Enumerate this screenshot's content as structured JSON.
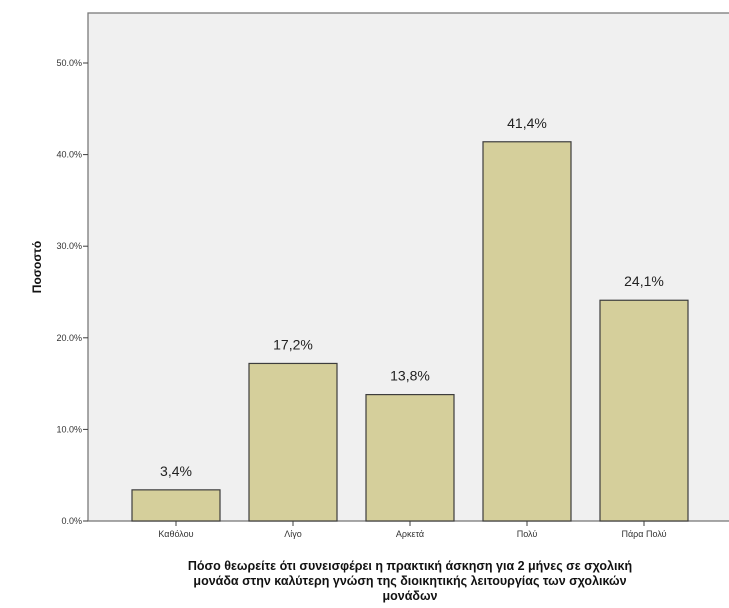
{
  "chart_data": {
    "type": "bar",
    "categories": [
      "Καθόλου",
      "Λίγο",
      "Αρκετά",
      "Πολύ",
      "Πάρα Πολύ"
    ],
    "values": [
      3.4,
      17.2,
      13.8,
      41.4,
      24.1
    ],
    "data_labels": [
      "3,4%",
      "17,2%",
      "13,8%",
      "41,4%",
      "24,1%"
    ],
    "ylabel": "Ποσοστό",
    "xlabel_lines": [
      "Πόσο θεωρείτε ότι συνεισφέρει η πρακτική άσκηση για 2 μήνες σε σχολική",
      "μονάδα στην καλύτερη γνώση της διοικητικής λειτουργίας των σχολικών",
      "μονάδων"
    ],
    "yticks": [
      "0.0%",
      "10.0%",
      "20.0%",
      "30.0%",
      "40.0%",
      "50.0%"
    ],
    "ytick_values": [
      0,
      10,
      20,
      30,
      40,
      50
    ],
    "ylim": [
      0,
      55
    ],
    "grid": false,
    "colors": {
      "bar_fill": "#d5cf9b",
      "bar_stroke": "#3d3d3d",
      "plot_background": "#f0f0f0"
    }
  }
}
